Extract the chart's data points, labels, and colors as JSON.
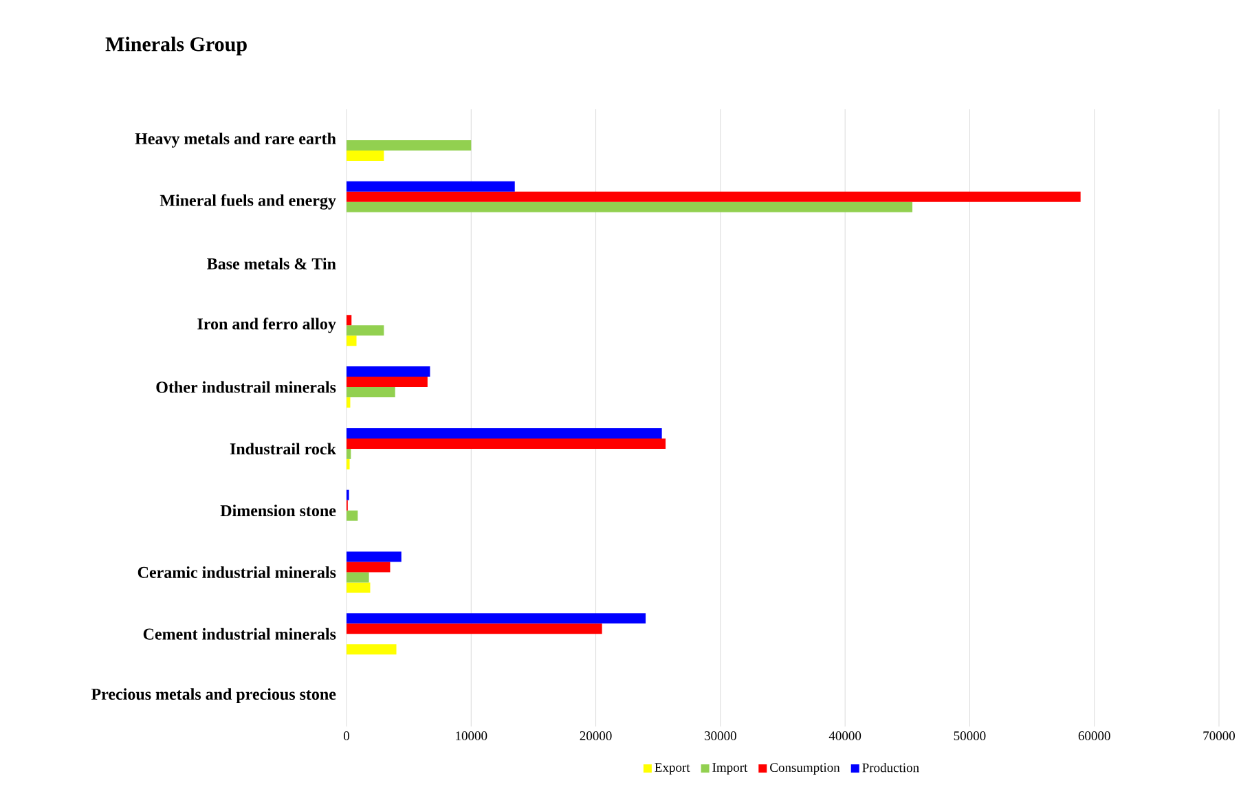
{
  "chart_data": {
    "type": "bar",
    "orientation": "horizontal",
    "title": "Minerals  Group",
    "categories": [
      "Heavy metals and rare earth",
      "Mineral fuels and  energy",
      "Base metals & Tin",
      "Iron and ferro alloy",
      "Other industrail minerals",
      "Industrail rock",
      "Dimension stone",
      "Ceramic industrial minerals",
      "Cement industrial minerals",
      "Precious metals and precious stone"
    ],
    "series": [
      {
        "name": "Export",
        "color": "#ffff00",
        "values": [
          3000,
          null,
          null,
          800,
          300,
          250,
          null,
          1900,
          4000,
          null
        ]
      },
      {
        "name": "Import",
        "color": "#92d050",
        "values": [
          10000,
          45400,
          null,
          3000,
          3900,
          350,
          900,
          1800,
          null,
          null
        ]
      },
      {
        "name": "Consumption",
        "color": "#ff0000",
        "values": [
          null,
          58900,
          null,
          400,
          6500,
          25600,
          100,
          3500,
          20500,
          null
        ]
      },
      {
        "name": "Production",
        "color": "#0000ff",
        "values": [
          null,
          13500,
          null,
          null,
          6700,
          25300,
          200,
          4400,
          24000,
          null
        ]
      }
    ],
    "xlim": [
      0,
      70000
    ],
    "xticks": [
      0,
      10000,
      20000,
      30000,
      40000,
      50000,
      60000,
      70000
    ],
    "grid": "x",
    "legend": "bottom"
  }
}
